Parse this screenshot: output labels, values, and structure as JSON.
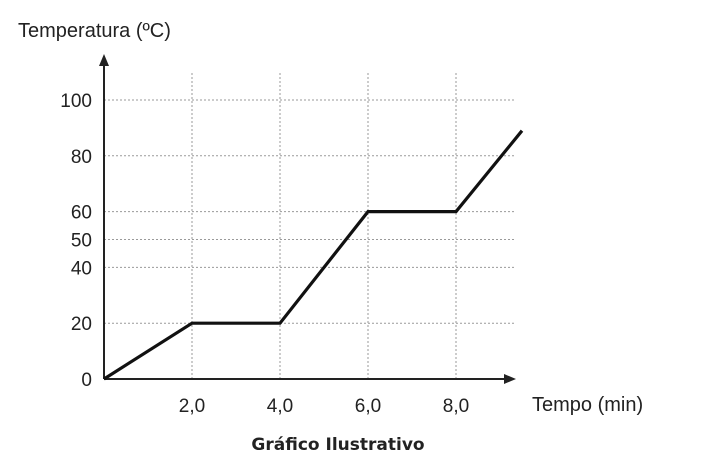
{
  "chart_data": {
    "type": "line",
    "title": "",
    "caption": "Gráfico Ilustrativo",
    "ylabel": "Temperatura (ºC)",
    "xlabel": "Tempo (min)",
    "x_ticks": [
      "2,0",
      "4,0",
      "6,0",
      "8,0"
    ],
    "x_tick_values": [
      2,
      4,
      6,
      8
    ],
    "y_ticks": [
      "0",
      "20",
      "40",
      "50",
      "60",
      "80",
      "100"
    ],
    "y_tick_values": [
      0,
      20,
      40,
      50,
      60,
      80,
      100
    ],
    "xlim": [
      0,
      9.5
    ],
    "ylim": [
      0,
      100
    ],
    "grid": true,
    "series": [
      {
        "x": [
          0,
          2,
          4,
          6,
          8,
          9.5
        ],
        "y": [
          0,
          20,
          20,
          60,
          60,
          89
        ]
      }
    ]
  }
}
